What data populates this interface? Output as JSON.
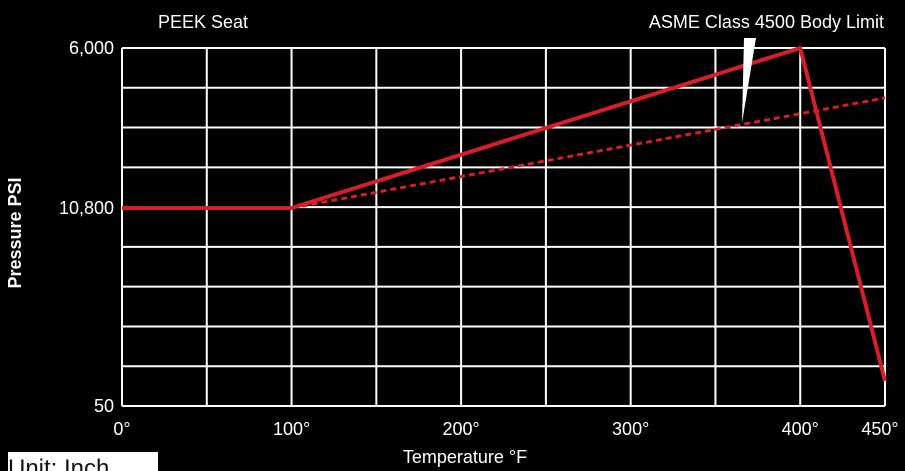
{
  "chart_data": {
    "type": "line",
    "xlabel": "Temperature °F",
    "ylabel": "Pressure PSI",
    "x_ticks": [
      "0°",
      "100°",
      "200°",
      "300°",
      "400°",
      "450°"
    ],
    "y_ticks": [
      "10,800",
      "6,000",
      "50"
    ],
    "xlim": [
      0,
      450
    ],
    "y_tick_values": [
      10800,
      6000,
      50
    ],
    "grid": true,
    "series": [
      {
        "name": "PEEK Seat",
        "style": "solid",
        "color": "#d71e28",
        "x": [
          0,
          100,
          250,
          400,
          450
        ],
        "y": [
          10800,
          10800,
          8400,
          6000,
          800
        ]
      },
      {
        "name": "ASME Class 4500 Body Limit",
        "style": "dashed",
        "color": "#d71e28",
        "x": [
          0,
          100,
          450
        ],
        "y": [
          10800,
          10800,
          7500
        ]
      }
    ]
  },
  "footer": {
    "unit_note": "Unit: Inch"
  }
}
